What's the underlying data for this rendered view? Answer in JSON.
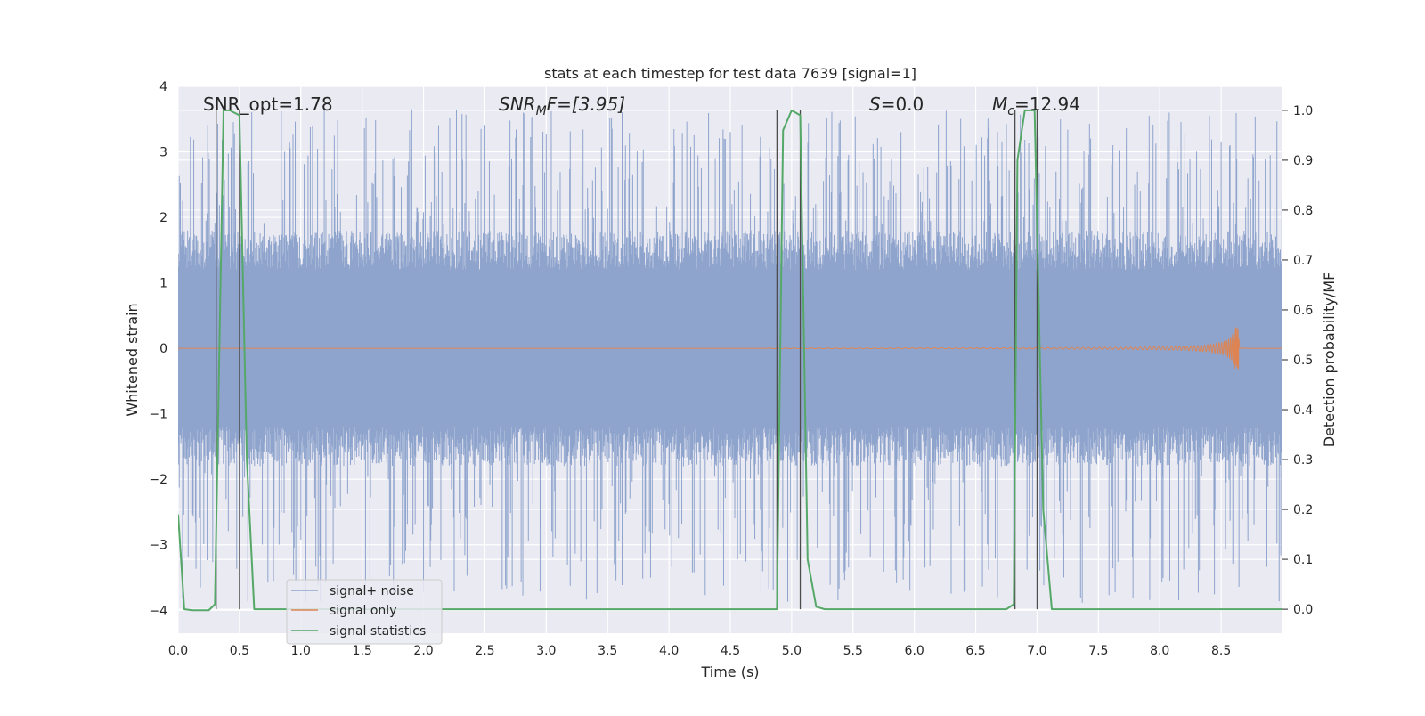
{
  "chart_data": {
    "type": "line",
    "title": "stats at each timestep for test data 7639 [signal=1]",
    "xlabel": "Time (s)",
    "ylabel_left": "Whitened strain",
    "ylabel_right": "Detection probability/MF",
    "xlim": [
      0.0,
      9.0
    ],
    "ylim_left": [
      -4.35,
      4.0
    ],
    "ylim_right": [
      -0.048,
      1.048
    ],
    "x_ticks": [
      0.0,
      0.5,
      1.0,
      1.5,
      2.0,
      2.5,
      3.0,
      3.5,
      4.0,
      4.5,
      5.0,
      5.5,
      6.0,
      6.5,
      7.0,
      7.5,
      8.0,
      8.5
    ],
    "x_tick_labels": [
      "0.0",
      "0.5",
      "1.0",
      "1.5",
      "2.0",
      "2.5",
      "3.0",
      "3.5",
      "4.0",
      "4.5",
      "5.0",
      "5.5",
      "6.0",
      "6.5",
      "7.0",
      "7.5",
      "8.0",
      "8.5"
    ],
    "y_left_ticks": [
      -4,
      -3,
      -2,
      -1,
      0,
      1,
      2,
      3,
      4
    ],
    "y_left_tick_labels": [
      "−4",
      "−3",
      "−2",
      "−1",
      "0",
      "1",
      "2",
      "3",
      "4"
    ],
    "y_right_ticks": [
      0.0,
      0.1,
      0.2,
      0.3,
      0.4,
      0.5,
      0.6,
      0.7,
      0.8,
      0.9,
      1.0
    ],
    "y_right_tick_labels": [
      "0.0",
      "0.1",
      "0.2",
      "0.3",
      "0.4",
      "0.5",
      "0.6",
      "0.7",
      "0.8",
      "0.9",
      "1.0"
    ],
    "grid": true,
    "legend_position": "lower-left",
    "annotations": {
      "snr_opt": "SNR_opt=1.78",
      "snr_mf_main": "SNR",
      "snr_mf_sub": "M",
      "snr_mf_rest": "F=[3.95]",
      "s_main": "S",
      "s_rest": "=0.0",
      "mc_main": "M",
      "mc_sub": "c",
      "mc_rest": "=12.94"
    },
    "series": [
      {
        "name": "signal+ noise",
        "color": "#8fa4cd",
        "axis": "left",
        "description_values": {
          "core_band_abs": 1.7,
          "spike_max_positive": 3.65,
          "spike_min_negative": -3.9,
          "sample_rate_hz": 220
        }
      },
      {
        "name": "signal only",
        "color": "#dd8452",
        "axis": "left",
        "chirp": {
          "start": 4.8,
          "merger": 8.65,
          "start_amp": 0.005,
          "peak_amp": 0.32
        }
      },
      {
        "name": "signal statistics",
        "color": "#55a868",
        "axis": "right",
        "points": [
          [
            0.0,
            0.19
          ],
          [
            0.05,
            0.0
          ],
          [
            0.12,
            -0.002
          ],
          [
            0.25,
            -0.002
          ],
          [
            0.3,
            0.01
          ],
          [
            0.37,
            1.0
          ],
          [
            0.42,
            1.0
          ],
          [
            0.5,
            0.99
          ],
          [
            0.56,
            0.3
          ],
          [
            0.62,
            0.0
          ],
          [
            4.88,
            0.0
          ],
          [
            4.93,
            0.96
          ],
          [
            5.0,
            1.0
          ],
          [
            5.07,
            0.99
          ],
          [
            5.13,
            0.1
          ],
          [
            5.2,
            0.005
          ],
          [
            5.27,
            0.0
          ],
          [
            6.75,
            0.0
          ],
          [
            6.81,
            0.01
          ],
          [
            6.84,
            0.9
          ],
          [
            6.9,
            1.0
          ],
          [
            6.98,
            1.0
          ],
          [
            7.05,
            0.2
          ],
          [
            7.12,
            0.0
          ],
          [
            9.0,
            0.0
          ]
        ]
      }
    ],
    "vertical_lines": [
      0.31,
      0.5,
      4.88,
      5.07,
      6.82,
      7.0
    ],
    "vertical_line_color": "#4d4d4d"
  }
}
